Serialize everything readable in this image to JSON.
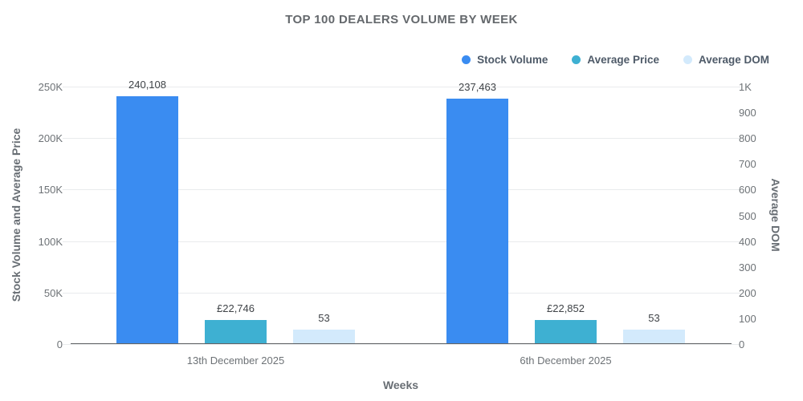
{
  "title": "TOP 100 DEALERS VOLUME BY WEEK",
  "legend": [
    {
      "label": "Stock Volume",
      "color": "#3a8cf1"
    },
    {
      "label": "Average Price",
      "color": "#3eb0d2"
    },
    {
      "label": "Average DOM",
      "color": "#d3eafc"
    }
  ],
  "chart_data": {
    "type": "bar",
    "categories": [
      "13th December 2025",
      "6th December 2025"
    ],
    "series": [
      {
        "name": "Stock Volume",
        "axis": "left",
        "color": "#3a8cf1",
        "values": [
          240108,
          237463
        ],
        "labels": [
          "240,108",
          "237,463"
        ]
      },
      {
        "name": "Average Price",
        "axis": "left",
        "color": "#3eb0d2",
        "values": [
          22746,
          22852
        ],
        "labels": [
          "£22,746",
          "£22,852"
        ]
      },
      {
        "name": "Average DOM",
        "axis": "right",
        "color": "#d3eafc",
        "values": [
          53,
          53
        ],
        "labels": [
          "53",
          "53"
        ]
      }
    ],
    "left_axis": {
      "label": "Stock Volume and Average Price",
      "max": 250000,
      "ticks": [
        "0",
        "50K",
        "100K",
        "150K",
        "200K",
        "250K"
      ]
    },
    "right_axis": {
      "label": "Average DOM",
      "max": 1000,
      "ticks": [
        "0",
        "100",
        "200",
        "300",
        "400",
        "500",
        "600",
        "700",
        "800",
        "900",
        "1K"
      ]
    },
    "xlabel": "Weeks",
    "grid": true,
    "legend_position": "top-right",
    "colors": {
      "gridline": "#e9ebed",
      "axis_line": "#606366",
      "tick_text": "#6d7276",
      "title_text": "#64686c"
    }
  }
}
